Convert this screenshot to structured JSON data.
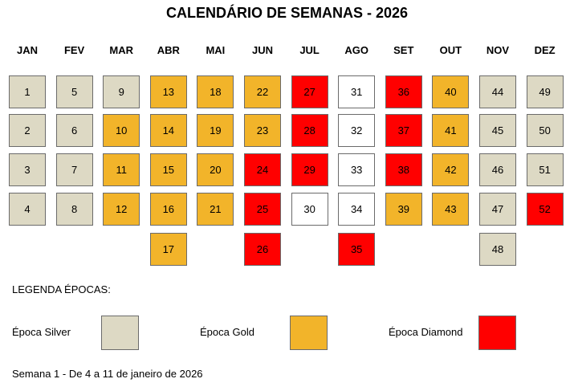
{
  "title": "CALENDÁRIO DE SEMANAS - 2026",
  "months": [
    {
      "name": "JAN",
      "weeks": [
        {
          "week": 1,
          "color": "#ddd9c4"
        },
        {
          "week": 2,
          "color": "#ddd9c4"
        },
        {
          "week": 3,
          "color": "#ddd9c4"
        },
        {
          "week": 4,
          "color": "#ddd9c4"
        }
      ]
    },
    {
      "name": "FEV",
      "weeks": [
        {
          "week": 5,
          "color": "#ddd9c4"
        },
        {
          "week": 6,
          "color": "#ddd9c4"
        },
        {
          "week": 7,
          "color": "#ddd9c4"
        },
        {
          "week": 8,
          "color": "#ddd9c4"
        }
      ]
    },
    {
      "name": "MAR",
      "weeks": [
        {
          "week": 9,
          "color": "#ddd9c4"
        },
        {
          "week": 10,
          "color": "#f2b42a"
        },
        {
          "week": 11,
          "color": "#f2b42a"
        },
        {
          "week": 12,
          "color": "#f2b42a"
        }
      ]
    },
    {
      "name": "ABR",
      "weeks": [
        {
          "week": 13,
          "color": "#f2b42a"
        },
        {
          "week": 14,
          "color": "#f2b42a"
        },
        {
          "week": 15,
          "color": "#f2b42a"
        },
        {
          "week": 16,
          "color": "#f2b42a"
        },
        {
          "week": 17,
          "color": "#f2b42a"
        }
      ]
    },
    {
      "name": "MAI",
      "weeks": [
        {
          "week": 18,
          "color": "#f2b42a"
        },
        {
          "week": 19,
          "color": "#f2b42a"
        },
        {
          "week": 20,
          "color": "#f2b42a"
        },
        {
          "week": 21,
          "color": "#f2b42a"
        }
      ]
    },
    {
      "name": "JUN",
      "weeks": [
        {
          "week": 22,
          "color": "#f2b42a"
        },
        {
          "week": 23,
          "color": "#f2b42a"
        },
        {
          "week": 24,
          "color": "#ff0000"
        },
        {
          "week": 25,
          "color": "#ff0000"
        },
        {
          "week": 26,
          "color": "#ff0000"
        }
      ]
    },
    {
      "name": "JUL",
      "weeks": [
        {
          "week": 27,
          "color": "#ff0000"
        },
        {
          "week": 28,
          "color": "#ff0000"
        },
        {
          "week": 29,
          "color": "#ff0000"
        },
        {
          "week": 30,
          "color": "#ffffff"
        }
      ]
    },
    {
      "name": "AGO",
      "weeks": [
        {
          "week": 31,
          "color": "#ffffff"
        },
        {
          "week": 32,
          "color": "#ffffff"
        },
        {
          "week": 33,
          "color": "#ffffff"
        },
        {
          "week": 34,
          "color": "#ffffff"
        },
        {
          "week": 35,
          "color": "#ff0000"
        }
      ]
    },
    {
      "name": "SET",
      "weeks": [
        {
          "week": 36,
          "color": "#ff0000"
        },
        {
          "week": 37,
          "color": "#ff0000"
        },
        {
          "week": 38,
          "color": "#ff0000"
        },
        {
          "week": 39,
          "color": "#f2b42a"
        }
      ]
    },
    {
      "name": "OUT",
      "weeks": [
        {
          "week": 40,
          "color": "#f2b42a"
        },
        {
          "week": 41,
          "color": "#f2b42a"
        },
        {
          "week": 42,
          "color": "#f2b42a"
        },
        {
          "week": 43,
          "color": "#f2b42a"
        }
      ]
    },
    {
      "name": "NOV",
      "weeks": [
        {
          "week": 44,
          "color": "#ddd9c4"
        },
        {
          "week": 45,
          "color": "#ddd9c4"
        },
        {
          "week": 46,
          "color": "#ddd9c4"
        },
        {
          "week": 47,
          "color": "#ddd9c4"
        },
        {
          "week": 48,
          "color": "#ddd9c4"
        }
      ]
    },
    {
      "name": "DEZ",
      "weeks": [
        {
          "week": 49,
          "color": "#ddd9c4"
        },
        {
          "week": 50,
          "color": "#ddd9c4"
        },
        {
          "week": 51,
          "color": "#ddd9c4"
        },
        {
          "week": 52,
          "color": "#ff0000"
        }
      ]
    }
  ],
  "legend": {
    "title": "LEGENDA ÉPOCAS:",
    "items": [
      {
        "label": "Época Silver",
        "color": "#ddd9c4"
      },
      {
        "label": "Época Gold",
        "color": "#f2b42a"
      },
      {
        "label": "Época Diamond",
        "color": "#ff0000"
      }
    ]
  },
  "footnote": "Semana 1 - De 4 a 11 de janeiro de 2026"
}
